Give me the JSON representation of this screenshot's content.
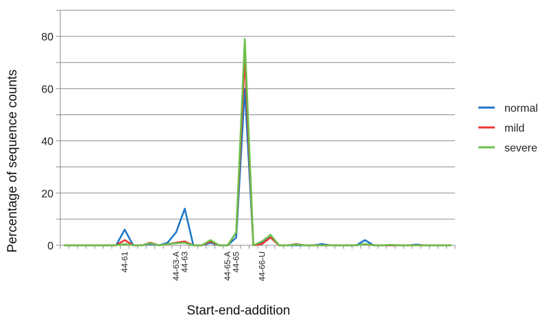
{
  "chart_data": {
    "type": "line",
    "xlabel": "Start-end-addition",
    "ylabel": "Percentage of sequence counts",
    "ylim": [
      0,
      90
    ],
    "yticks": [
      0,
      20,
      40,
      60,
      80
    ],
    "grid": true,
    "legend_position": "right",
    "x_count": 46,
    "category_labels": [
      {
        "index": 7,
        "label": "44-61"
      },
      {
        "index": 13,
        "label": "44-63-A"
      },
      {
        "index": 14,
        "label": "44-63"
      },
      {
        "index": 19,
        "label": "44-65-A"
      },
      {
        "index": 20,
        "label": "44-65"
      },
      {
        "index": 23,
        "label": "44-66-U"
      }
    ],
    "series": [
      {
        "name": "normal",
        "color": "#1f77c9",
        "values": [
          0,
          0,
          0,
          0,
          0,
          0,
          0,
          6,
          0,
          0,
          0.5,
          0,
          1,
          5,
          14,
          0,
          0,
          1,
          0,
          0,
          3,
          60,
          0,
          1,
          3,
          0,
          0,
          0,
          0,
          0,
          0.5,
          0,
          0,
          0,
          0,
          2,
          0,
          0,
          0,
          0,
          0,
          0.3,
          0,
          0,
          0,
          0
        ]
      },
      {
        "name": "mild",
        "color": "#ee3333",
        "values": [
          0,
          0,
          0,
          0,
          0,
          0,
          0,
          2,
          0,
          0,
          1,
          0,
          0.5,
          1,
          1.5,
          0,
          0,
          1.5,
          0,
          0,
          5,
          72,
          0,
          0.5,
          3,
          0,
          0,
          0.5,
          0,
          0,
          0,
          0,
          0,
          0,
          0,
          0.5,
          0,
          0,
          0,
          0,
          0,
          0,
          0,
          0,
          0,
          0
        ]
      },
      {
        "name": "severe",
        "color": "#6cc04a",
        "values": [
          0,
          0,
          0,
          0,
          0,
          0,
          0,
          0.5,
          0,
          0,
          0.8,
          0,
          0.5,
          0.8,
          1,
          0,
          0,
          2,
          0,
          0,
          5,
          79,
          0,
          1.5,
          4,
          0,
          0,
          0.3,
          0,
          0,
          0,
          0,
          0,
          0,
          0,
          0.5,
          0,
          0,
          0.2,
          0,
          0,
          0,
          0,
          0,
          0,
          0
        ]
      }
    ]
  }
}
